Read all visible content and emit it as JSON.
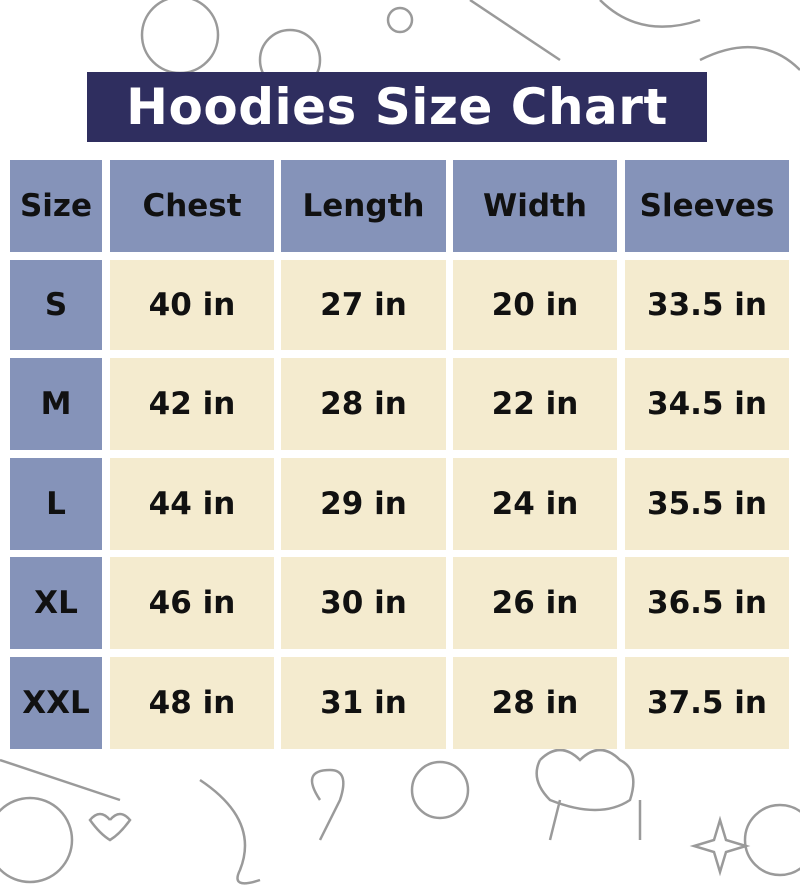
{
  "title": "Hoodies Size Chart",
  "colors": {
    "title_bg": "#2f2e5f",
    "header_bg": "#8593b9",
    "cell_bg": "#f4ebcf",
    "text": "#111111"
  },
  "chart_data": {
    "type": "table",
    "title": "Hoodies Size Chart",
    "columns": [
      "Size",
      "Chest",
      "Length",
      "Width",
      "Sleeves"
    ],
    "rows": [
      [
        "S",
        "40 in",
        "27 in",
        "20 in",
        "33.5 in"
      ],
      [
        "M",
        "42 in",
        "28 in",
        "22 in",
        "34.5 in"
      ],
      [
        "L",
        "44 in",
        "29 in",
        "24 in",
        "35.5 in"
      ],
      [
        "XL",
        "46 in",
        "30 in",
        "26 in",
        "36.5 in"
      ],
      [
        "XXL",
        "48 in",
        "31 in",
        "28 in",
        "37.5 in"
      ]
    ]
  }
}
